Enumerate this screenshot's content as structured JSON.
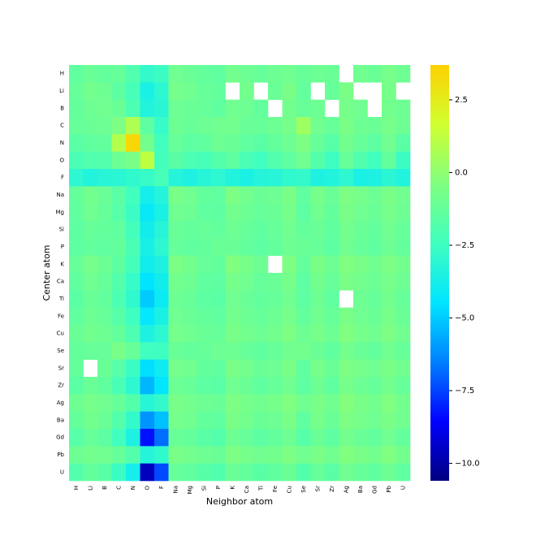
{
  "chart_data": {
    "type": "heatmap",
    "x_label": "Neighbor atom",
    "y_label": "Center atom",
    "categories": [
      "H",
      "Li",
      "B",
      "C",
      "N",
      "O",
      "F",
      "Na",
      "Mg",
      "Si",
      "P",
      "K",
      "Ca",
      "Ti",
      "Fe",
      "Cu",
      "Se",
      "Sr",
      "Zr",
      "Ag",
      "Ba",
      "Gd",
      "Pb",
      "U"
    ],
    "rows": [
      "H",
      "Li",
      "B",
      "C",
      "N",
      "O",
      "F",
      "Na",
      "Mg",
      "Si",
      "P",
      "K",
      "Ca",
      "Ti",
      "Fe",
      "Cu",
      "Se",
      "Sr",
      "Zr",
      "Ag",
      "Ba",
      "Gd",
      "Pb",
      "U"
    ],
    "matrix": [
      [
        -1.4,
        -1.1,
        -1.3,
        -1.2,
        -1.9,
        -2.8,
        -2.6,
        -0.9,
        -1.1,
        -1.3,
        -1.4,
        -0.8,
        -1.0,
        -1.2,
        -1.0,
        -0.9,
        -1.2,
        -1.0,
        -1.1,
        null,
        -0.9,
        -1.1,
        -0.7,
        -1.0
      ],
      [
        -1.2,
        -0.8,
        -1.0,
        -1.5,
        -2.2,
        -3.6,
        -3.0,
        -0.7,
        -0.9,
        -1.2,
        -1.3,
        null,
        -0.8,
        null,
        -1.1,
        -0.6,
        -1.3,
        null,
        -1.2,
        -0.6,
        null,
        null,
        -0.7,
        null
      ],
      [
        -1.3,
        -1.0,
        -0.9,
        -1.1,
        -2.0,
        -3.4,
        -3.1,
        -1.0,
        -1.1,
        -1.2,
        -1.4,
        -0.9,
        -1.0,
        -1.3,
        null,
        -0.8,
        -1.2,
        -1.0,
        null,
        -0.7,
        -0.9,
        null,
        -0.8,
        -1.0
      ],
      [
        -1.2,
        -1.1,
        -1.0,
        -0.5,
        0.8,
        -1.5,
        -2.7,
        -1.0,
        -1.2,
        -1.0,
        -0.9,
        -0.8,
        -1.1,
        -1.2,
        -1.0,
        -0.7,
        0.4,
        -0.9,
        -1.2,
        -0.6,
        -1.0,
        -1.1,
        -0.7,
        -1.0
      ],
      [
        -1.6,
        -1.4,
        -1.3,
        0.9,
        3.4,
        -0.8,
        -2.4,
        -1.2,
        -1.5,
        -1.4,
        -1.0,
        -1.1,
        -1.4,
        -1.6,
        -1.3,
        -1.0,
        -0.5,
        -1.2,
        -1.7,
        -0.8,
        -1.2,
        -1.5,
        -0.9,
        -1.6
      ],
      [
        -2.1,
        -1.9,
        -1.8,
        -1.0,
        -0.6,
        1.2,
        -2.3,
        -1.6,
        -2.0,
        -2.2,
        -1.8,
        -1.5,
        -2.1,
        -2.4,
        -1.9,
        -1.4,
        -0.9,
        -1.8,
        -2.5,
        -1.2,
        -1.9,
        -2.4,
        -1.3,
        -2.6
      ],
      [
        -3.0,
        -3.4,
        -3.2,
        -3.1,
        -2.9,
        -2.7,
        -2.2,
        -3.3,
        -3.5,
        -3.2,
        -3.0,
        -3.4,
        -3.6,
        -3.3,
        -3.2,
        -2.9,
        -2.8,
        -3.5,
        -3.4,
        -3.0,
        -3.6,
        -3.5,
        -3.1,
        -3.4
      ],
      [
        -1.3,
        -0.8,
        -1.1,
        -1.6,
        -2.4,
        -3.8,
        -3.3,
        -0.6,
        -0.9,
        -1.3,
        -1.4,
        -0.5,
        -0.8,
        -1.1,
        -1.0,
        -0.6,
        -1.4,
        -0.7,
        -1.1,
        -0.5,
        -0.7,
        -1.0,
        -0.6,
        -0.9
      ],
      [
        -1.4,
        -0.9,
        -1.2,
        -1.7,
        -2.6,
        -4.2,
        -3.6,
        -0.9,
        -1.0,
        -1.4,
        -1.5,
        -0.8,
        -1.0,
        -1.2,
        -1.1,
        -0.7,
        -1.5,
        -0.9,
        -1.3,
        -0.6,
        -0.9,
        -1.1,
        -0.7,
        -1.0
      ],
      [
        -1.5,
        -1.2,
        -1.3,
        -1.4,
        -2.3,
        -3.9,
        -3.2,
        -1.1,
        -1.3,
        -1.2,
        -1.3,
        -1.0,
        -1.2,
        -1.4,
        -1.2,
        -0.9,
        -1.3,
        -1.1,
        -1.4,
        -0.8,
        -1.1,
        -1.3,
        -0.9,
        -1.2
      ],
      [
        -1.5,
        -1.3,
        -1.4,
        -1.3,
        -2.1,
        -3.7,
        -3.0,
        -1.2,
        -1.4,
        -1.3,
        -1.1,
        -1.1,
        -1.3,
        -1.5,
        -1.3,
        -1.0,
        -1.1,
        -1.2,
        -1.5,
        -0.9,
        -1.2,
        -1.4,
        -1.0,
        -1.3
      ],
      [
        -1.2,
        -0.7,
        -1.0,
        -1.5,
        -2.3,
        -3.9,
        -3.5,
        -0.5,
        -0.8,
        -1.2,
        -1.3,
        -0.4,
        -0.7,
        -1.0,
        null,
        -0.5,
        -1.3,
        -0.6,
        -1.0,
        -0.4,
        -0.6,
        -0.9,
        -0.5,
        -0.8
      ],
      [
        -1.4,
        -0.9,
        -1.2,
        -1.8,
        -2.7,
        -4.5,
        -3.9,
        -0.8,
        -1.0,
        -1.4,
        -1.5,
        -0.7,
        -0.9,
        -1.2,
        -1.1,
        -0.7,
        -1.5,
        -0.8,
        -1.2,
        -0.6,
        -0.8,
        -1.0,
        -0.7,
        -1.0
      ],
      [
        -1.6,
        -1.1,
        -1.3,
        -2.0,
        -2.9,
        -5.0,
        -4.1,
        -1.0,
        -1.2,
        -1.5,
        -1.6,
        -0.9,
        -1.1,
        -1.3,
        -1.2,
        -0.9,
        -1.5,
        -1.0,
        -1.4,
        null,
        -1.0,
        -1.2,
        -0.8,
        -1.2
      ],
      [
        -1.4,
        -1.0,
        -1.2,
        -1.7,
        -2.5,
        -4.3,
        -3.6,
        -0.9,
        -1.1,
        -1.3,
        -1.4,
        -0.8,
        -1.0,
        -1.2,
        -1.0,
        -0.7,
        -1.3,
        -0.9,
        -1.2,
        -0.6,
        -0.9,
        -1.1,
        -0.7,
        -1.1
      ],
      [
        -1.1,
        -0.8,
        -1.0,
        -1.3,
        -2.0,
        -3.5,
        -3.0,
        -0.7,
        -0.9,
        -1.1,
        -1.2,
        -0.6,
        -0.8,
        -1.0,
        -0.8,
        -0.5,
        -1.0,
        -0.7,
        -1.0,
        -0.4,
        -0.7,
        -0.9,
        -0.5,
        -0.9
      ],
      [
        -1.3,
        -1.2,
        -1.2,
        -0.6,
        -1.2,
        -2.4,
        -2.5,
        -1.1,
        -1.3,
        -1.2,
        -1.0,
        -1.0,
        -1.2,
        -1.4,
        -1.2,
        -0.9,
        -0.8,
        -1.1,
        -1.4,
        -0.8,
        -1.1,
        -1.3,
        -0.9,
        -1.2
      ],
      [
        -1.3,
        null,
        -1.1,
        -1.7,
        -2.6,
        -4.6,
        -4.0,
        -0.7,
        -0.9,
        -1.3,
        -1.4,
        -0.6,
        -0.8,
        -1.1,
        -1.0,
        -0.6,
        -1.4,
        -0.7,
        -1.1,
        -0.5,
        -0.7,
        -0.9,
        -0.6,
        -0.9
      ],
      [
        -1.6,
        -1.1,
        -1.4,
        -2.1,
        -3.0,
        -5.4,
        -4.4,
        -1.0,
        -1.2,
        -1.5,
        -1.6,
        -0.9,
        -1.1,
        -1.4,
        -1.2,
        -0.9,
        -1.5,
        -1.0,
        -1.4,
        -0.7,
        -1.0,
        -1.2,
        -0.8,
        -1.2
      ],
      [
        -1.0,
        -0.7,
        -0.9,
        -1.2,
        -1.8,
        -3.2,
        -2.8,
        -0.6,
        -0.8,
        -1.0,
        -1.1,
        -0.5,
        -0.7,
        -0.9,
        -0.7,
        -0.4,
        -0.9,
        -0.6,
        -0.9,
        -0.3,
        -0.6,
        -0.8,
        -0.4,
        -0.8
      ],
      [
        -1.3,
        -0.8,
        -1.1,
        -1.8,
        -2.8,
        -6.1,
        -5.2,
        -0.7,
        -0.9,
        -1.3,
        -1.4,
        -0.6,
        -0.8,
        -1.1,
        -1.0,
        -0.6,
        -1.4,
        -0.7,
        -1.1,
        -0.5,
        -0.7,
        -0.9,
        -0.6,
        -0.9
      ],
      [
        -1.7,
        -1.2,
        -1.5,
        -2.4,
        -3.5,
        -8.3,
        -6.8,
        -1.1,
        -1.3,
        -1.6,
        -1.8,
        -1.0,
        -1.2,
        -1.5,
        -1.3,
        -1.0,
        -1.7,
        -1.1,
        -1.5,
        -0.8,
        -1.1,
        -1.3,
        -0.9,
        -1.3
      ],
      [
        -1.0,
        -0.8,
        -0.9,
        -1.2,
        -1.8,
        -3.3,
        -2.9,
        -0.6,
        -0.8,
        -1.0,
        -1.1,
        -0.5,
        -0.7,
        -0.9,
        -0.8,
        -0.5,
        -0.9,
        -0.6,
        -0.9,
        -0.4,
        -0.6,
        -0.8,
        -0.4,
        -0.8
      ],
      [
        -1.8,
        -1.3,
        -1.6,
        -2.6,
        -3.8,
        -9.6,
        -7.4,
        -1.2,
        -1.4,
        -1.7,
        -1.9,
        -1.1,
        -1.3,
        -1.6,
        -1.4,
        -1.1,
        -1.8,
        -1.2,
        -1.6,
        -0.9,
        -1.2,
        -1.4,
        -1.0,
        -1.4
      ]
    ],
    "colormap": [
      "#000080",
      "#0000ff",
      "#0080ff",
      "#00e5ff",
      "#40ffbf",
      "#80ff80",
      "#d0ff30",
      "#ffd000"
    ],
    "zlim": [
      -10.6,
      3.7
    ],
    "zticks": [
      2.5,
      {
        "value": 0,
        "label": "0.0"
      },
      {
        "value": -2.5,
        "label": "−2.5"
      },
      {
        "value": -5,
        "label": "−5.0"
      },
      {
        "value": -7.5,
        "label": "−7.5"
      },
      {
        "value": -10,
        "label": "−10.0"
      }
    ]
  }
}
